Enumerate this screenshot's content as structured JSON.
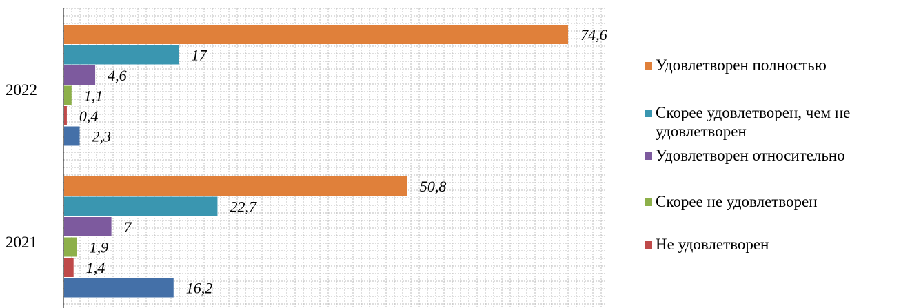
{
  "chart_data": {
    "type": "bar",
    "orientation": "horizontal",
    "categories": [
      "2022",
      "2021"
    ],
    "series": [
      {
        "name": "Удовлетворен полностью",
        "color": "#E0803A",
        "values": [
          74.6,
          50.8
        ],
        "labels": [
          "74,6",
          "50,8"
        ]
      },
      {
        "name": "Скорее удовлетворен, чем не удовлетворен",
        "color": "#3A96B0",
        "values": [
          17,
          22.7
        ],
        "labels": [
          "17",
          "22,7"
        ]
      },
      {
        "name": "Удовлетворен относительно",
        "color": "#7D5A9E",
        "values": [
          4.6,
          7
        ],
        "labels": [
          "4,6",
          "7"
        ]
      },
      {
        "name": "Скорее не удовлетворен",
        "color": "#8DB04A",
        "values": [
          1.1,
          1.9
        ],
        "labels": [
          "1,1",
          "1,9"
        ]
      },
      {
        "name": "Не удовлетворен",
        "color": "#BF4A4A",
        "values": [
          0.4,
          1.4
        ],
        "labels": [
          "0,4",
          "1,4"
        ]
      },
      {
        "name": "",
        "color": "#4470A8",
        "values": [
          2.3,
          16.2
        ],
        "labels": [
          "2,3",
          "16,2"
        ]
      }
    ],
    "xlim": [
      0,
      80
    ],
    "grid": true,
    "legend_position": "right"
  },
  "legend": [
    {
      "label": "Удовлетворен полностью",
      "color": "#E0803A"
    },
    {
      "label": "Скорее удовлетворен, чем не удовлетворен",
      "color": "#3A96B0"
    },
    {
      "label": "Удовлетворен относительно",
      "color": "#7D5A9E"
    },
    {
      "label": "Скорее не удовлетворен",
      "color": "#8DB04A"
    },
    {
      "label": "Не удовлетворен",
      "color": "#BF4A4A"
    }
  ]
}
